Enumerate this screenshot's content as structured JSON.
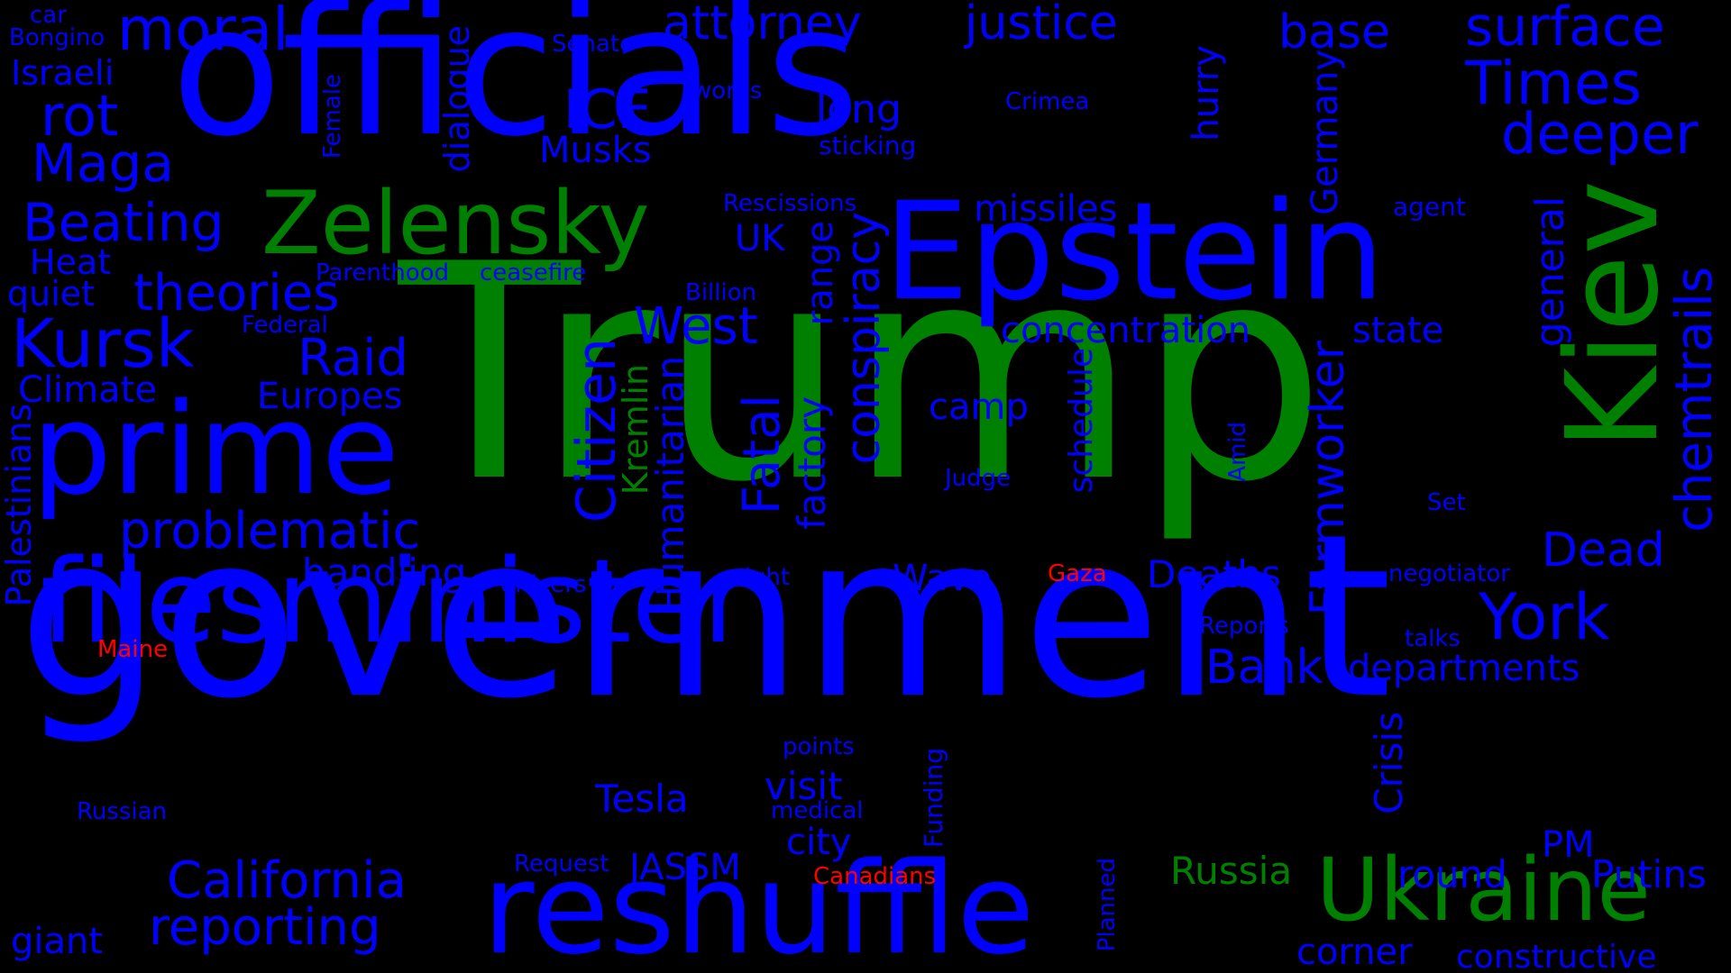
{
  "colors": {
    "background": "#000000",
    "blue": "#0000ff",
    "green": "#008000",
    "red": "#ff0000"
  },
  "words": [
    {
      "text": "Trump",
      "color": "green"
    },
    {
      "text": "government",
      "color": "blue"
    },
    {
      "text": "officials",
      "color": "blue"
    },
    {
      "text": "filesminister",
      "color": "blue"
    },
    {
      "text": "reshuffle",
      "color": "blue"
    },
    {
      "text": "Epstein",
      "color": "blue"
    },
    {
      "text": "prime",
      "color": "blue"
    },
    {
      "text": "Kiev",
      "color": "green"
    },
    {
      "text": "Zelensky",
      "color": "green"
    },
    {
      "text": "Ukraine",
      "color": "green"
    },
    {
      "text": "moral",
      "color": "blue"
    },
    {
      "text": "attorney",
      "color": "blue"
    },
    {
      "text": "justice",
      "color": "blue"
    },
    {
      "text": "base",
      "color": "blue"
    },
    {
      "text": "surface",
      "color": "blue"
    },
    {
      "text": "Times",
      "color": "blue"
    },
    {
      "text": "deeper",
      "color": "blue"
    },
    {
      "text": "rot",
      "color": "blue"
    },
    {
      "text": "Maga",
      "color": "blue"
    },
    {
      "text": "Beating",
      "color": "blue"
    },
    {
      "text": "theories",
      "color": "blue"
    },
    {
      "text": "Kursk",
      "color": "blue"
    },
    {
      "text": "Raid",
      "color": "blue"
    },
    {
      "text": "Europes",
      "color": "blue"
    },
    {
      "text": "Climate",
      "color": "blue"
    },
    {
      "text": "problematic",
      "color": "blue"
    },
    {
      "text": "handling",
      "color": "blue"
    },
    {
      "text": "ICE",
      "color": "blue"
    },
    {
      "text": "Musks",
      "color": "blue"
    },
    {
      "text": "long",
      "color": "blue"
    },
    {
      "text": "sticking",
      "color": "blue"
    },
    {
      "text": "missiles",
      "color": "blue"
    },
    {
      "text": "concentration",
      "color": "blue"
    },
    {
      "text": "state",
      "color": "blue"
    },
    {
      "text": "camp",
      "color": "blue"
    },
    {
      "text": "West",
      "color": "blue"
    },
    {
      "text": "UK",
      "color": "blue"
    },
    {
      "text": "Dead",
      "color": "blue"
    },
    {
      "text": "York",
      "color": "blue"
    },
    {
      "text": "Deaths",
      "color": "blue"
    },
    {
      "text": "Bank",
      "color": "blue"
    },
    {
      "text": "departments",
      "color": "blue"
    },
    {
      "text": "Wave",
      "color": "blue"
    },
    {
      "text": "Tesla",
      "color": "blue"
    },
    {
      "text": "visit",
      "color": "blue"
    },
    {
      "text": "city",
      "color": "blue"
    },
    {
      "text": "JASSM",
      "color": "blue"
    },
    {
      "text": "California",
      "color": "blue"
    },
    {
      "text": "reporting",
      "color": "blue"
    },
    {
      "text": "Russia",
      "color": "green"
    },
    {
      "text": "round",
      "color": "blue"
    },
    {
      "text": "Putins",
      "color": "blue"
    },
    {
      "text": "PM",
      "color": "blue"
    },
    {
      "text": "corner",
      "color": "blue"
    },
    {
      "text": "constructive",
      "color": "blue"
    },
    {
      "text": "giant",
      "color": "blue"
    },
    {
      "text": "Heat",
      "color": "blue"
    },
    {
      "text": "quiet",
      "color": "blue"
    },
    {
      "text": "Israeli",
      "color": "blue"
    },
    {
      "text": "car",
      "color": "blue"
    },
    {
      "text": "Bongino",
      "color": "blue"
    },
    {
      "text": "Senate",
      "color": "blue"
    },
    {
      "text": "words",
      "color": "blue"
    },
    {
      "text": "Crimea",
      "color": "blue"
    },
    {
      "text": "Rescissions",
      "color": "blue"
    },
    {
      "text": "agent",
      "color": "blue"
    },
    {
      "text": "Parenthood",
      "color": "blue"
    },
    {
      "text": "ceasefire",
      "color": "blue"
    },
    {
      "text": "Billion",
      "color": "blue"
    },
    {
      "text": "Federal",
      "color": "blue"
    },
    {
      "text": "Judge",
      "color": "blue"
    },
    {
      "text": "Set",
      "color": "blue"
    },
    {
      "text": "officers",
      "color": "blue"
    },
    {
      "text": "right",
      "color": "blue"
    },
    {
      "text": "Gaza",
      "color": "red"
    },
    {
      "text": "negotiator",
      "color": "blue"
    },
    {
      "text": "Reports",
      "color": "blue"
    },
    {
      "text": "talks",
      "color": "blue"
    },
    {
      "text": "Maine",
      "color": "red"
    },
    {
      "text": "points",
      "color": "blue"
    },
    {
      "text": "medical",
      "color": "blue"
    },
    {
      "text": "Russian",
      "color": "blue"
    },
    {
      "text": "Request",
      "color": "blue"
    },
    {
      "text": "Canadians",
      "color": "red"
    },
    {
      "text": "dialogue",
      "color": "blue"
    },
    {
      "text": "Female",
      "color": "blue"
    },
    {
      "text": "hurry",
      "color": "blue"
    },
    {
      "text": "Germany",
      "color": "blue"
    },
    {
      "text": "general",
      "color": "blue"
    },
    {
      "text": "chemtrails",
      "color": "blue"
    },
    {
      "text": "conspiracy",
      "color": "blue"
    },
    {
      "text": "range",
      "color": "blue"
    },
    {
      "text": "factory",
      "color": "blue"
    },
    {
      "text": "Fatal",
      "color": "blue"
    },
    {
      "text": "Citizen",
      "color": "blue"
    },
    {
      "text": "Kremlin",
      "color": "green"
    },
    {
      "text": "Humanitarian",
      "color": "blue"
    },
    {
      "text": "schedule",
      "color": "blue"
    },
    {
      "text": "Farmworker",
      "color": "blue"
    },
    {
      "text": "Amid",
      "color": "blue"
    },
    {
      "text": "Crisis",
      "color": "blue"
    },
    {
      "text": "Funding",
      "color": "blue"
    },
    {
      "text": "Planned",
      "color": "blue"
    },
    {
      "text": "Palestinians",
      "color": "blue"
    }
  ]
}
